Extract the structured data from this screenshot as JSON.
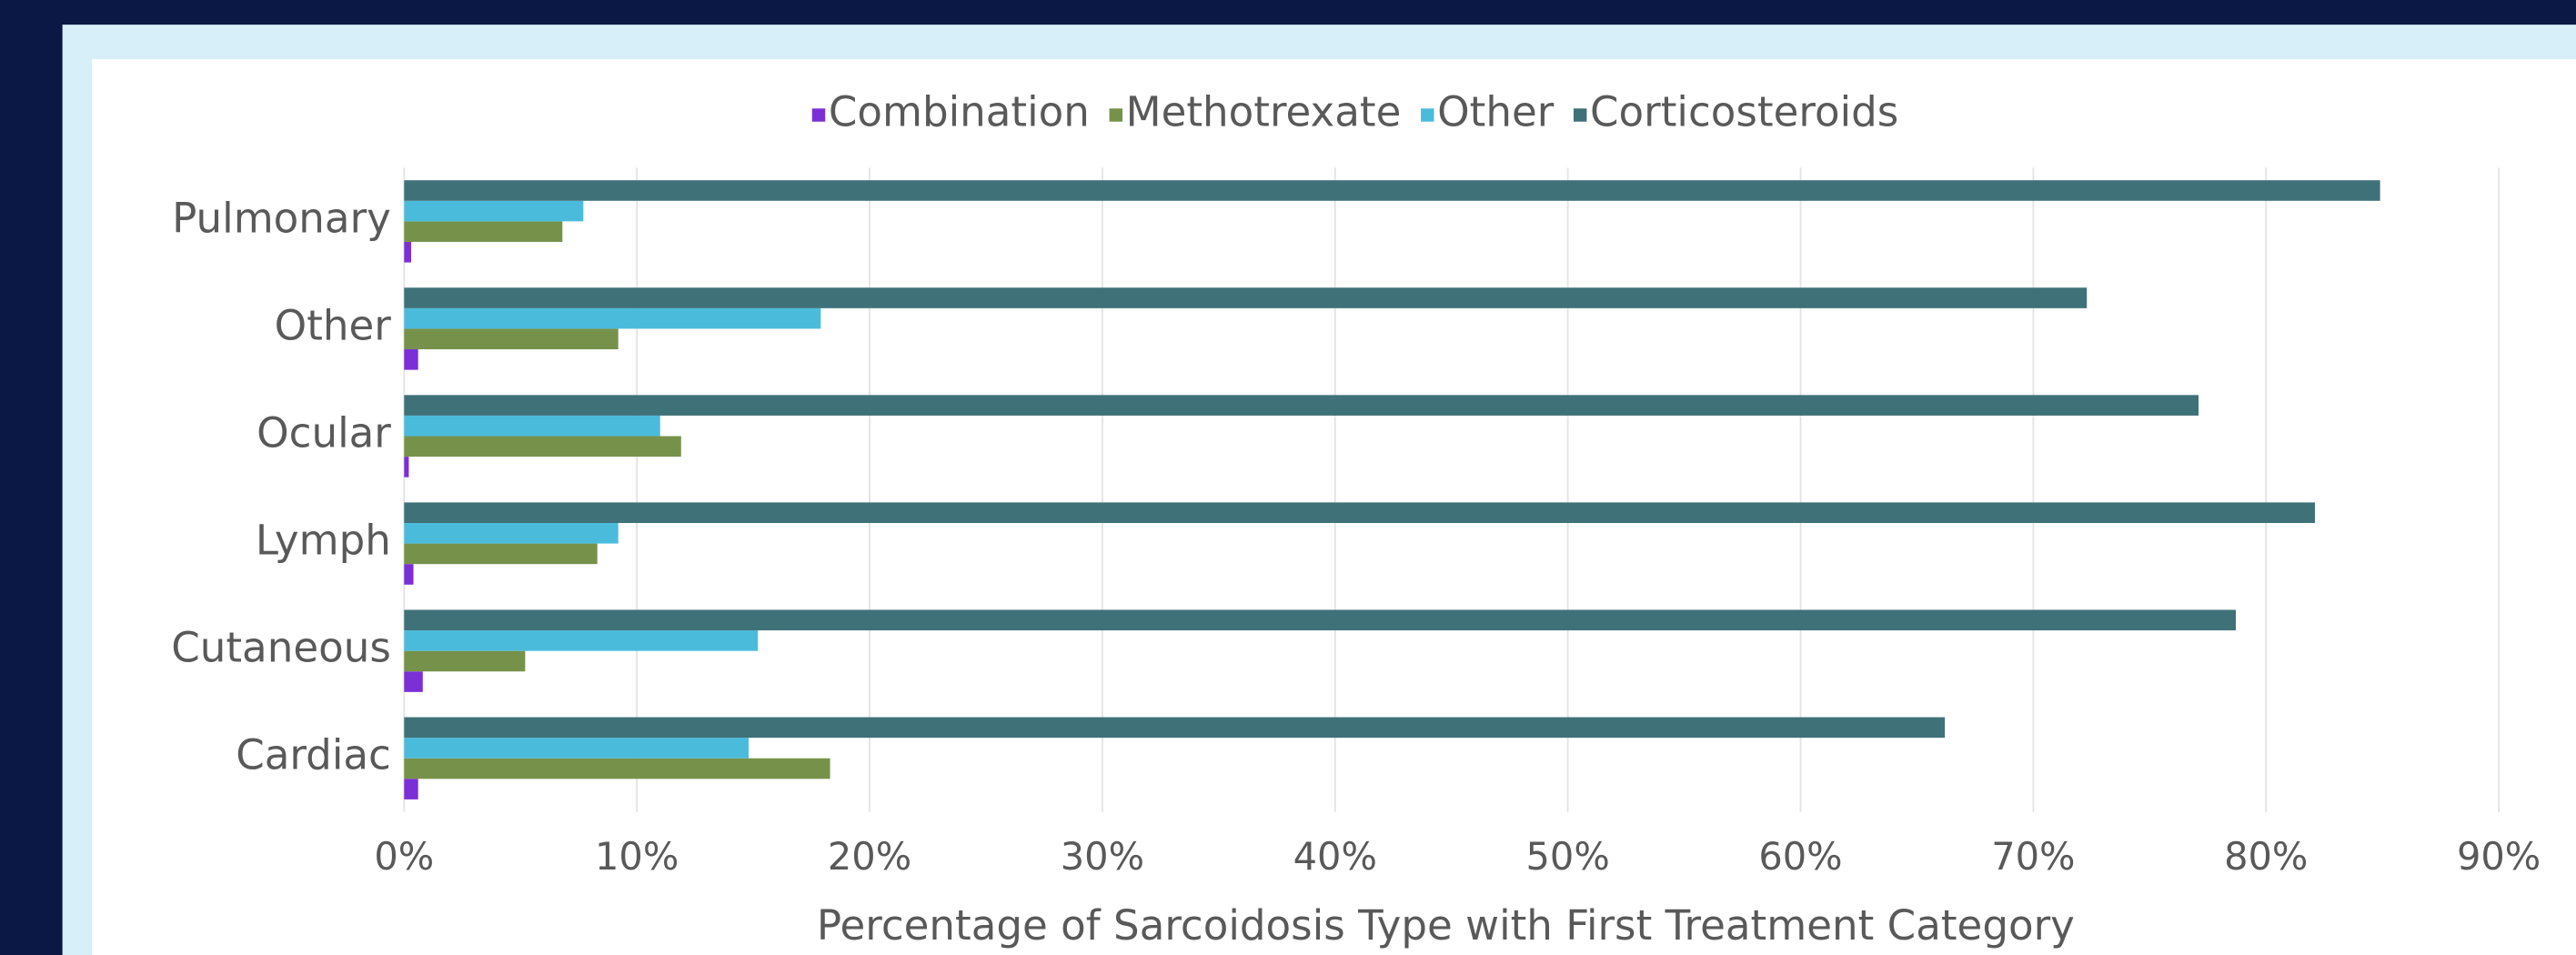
{
  "chart_data": {
    "type": "hbar",
    "x_label": "Percentage of Sarcoidosis Type with First Treatment Category",
    "categories": [
      "Cardiac",
      "Cutaneous",
      "Lymph",
      "Ocular",
      "Other",
      "Pulmonary"
    ],
    "series": [
      {
        "name": "Combination",
        "color": "#7b2fd6",
        "values": [
          0.6,
          0.8,
          0.4,
          0.2,
          0.6,
          0.3
        ]
      },
      {
        "name": "Methotrexate",
        "color": "#76924a",
        "values": [
          18.3,
          5.2,
          8.3,
          11.9,
          9.2,
          6.8
        ]
      },
      {
        "name": "Other",
        "color": "#4bbbdc",
        "values": [
          14.8,
          15.2,
          9.2,
          11.0,
          17.9,
          7.7
        ]
      },
      {
        "name": "Corticosteroids",
        "color": "#3f7178",
        "values": [
          66.2,
          78.7,
          82.1,
          77.1,
          72.3,
          84.9
        ]
      }
    ],
    "xlim": [
      0,
      90
    ],
    "xticks": [
      {
        "value": 0,
        "label": "0%"
      },
      {
        "value": 10,
        "label": "10%"
      },
      {
        "value": 20,
        "label": "20%"
      },
      {
        "value": 30,
        "label": "30%"
      },
      {
        "value": 40,
        "label": "40%"
      },
      {
        "value": 50,
        "label": "50%"
      },
      {
        "value": 60,
        "label": "60%"
      },
      {
        "value": 70,
        "label": "70%"
      },
      {
        "value": 80,
        "label": "80%"
      },
      {
        "value": 90,
        "label": "90%"
      }
    ],
    "grid": true,
    "legend": "top"
  }
}
